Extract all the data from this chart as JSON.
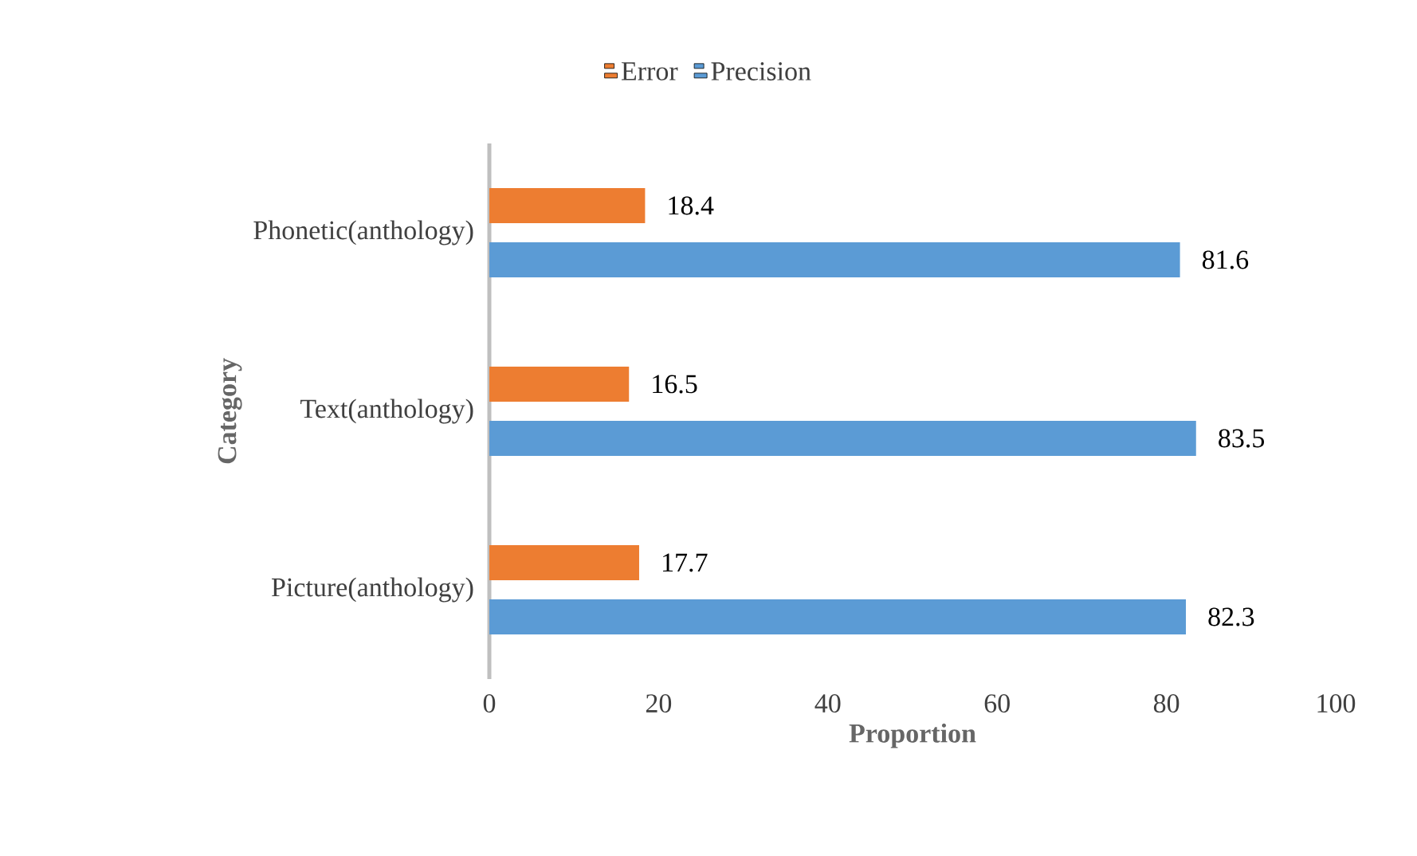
{
  "chart_data": {
    "type": "bar",
    "orientation": "horizontal",
    "xlabel": "Proportion",
    "ylabel": "Category",
    "categories": [
      "Phonetic(anthology)",
      "Text(anthology)",
      "Picture(anthology)"
    ],
    "series": [
      {
        "name": "Error",
        "color": "#ed7d31",
        "values": [
          18.4,
          16.5,
          17.7
        ]
      },
      {
        "name": "Precision",
        "color": "#5b9bd5",
        "values": [
          81.6,
          83.5,
          82.3
        ]
      }
    ],
    "xlim": [
      0,
      100
    ],
    "xticks": [
      0,
      20,
      40,
      60,
      80,
      100
    ],
    "data_labels": true,
    "legend": "top"
  }
}
